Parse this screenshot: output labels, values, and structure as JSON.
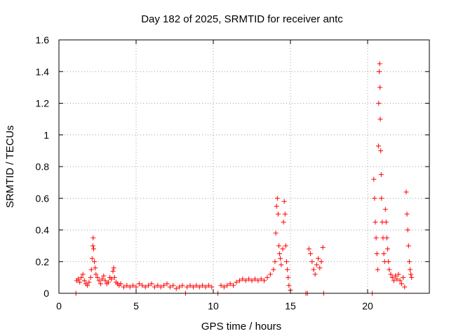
{
  "chart_data": {
    "type": "scatter",
    "title": "Day 182 of 2025, SRMTID for receiver antc",
    "xlabel": "GPS time / hours",
    "ylabel": "SRMTID / TECUs",
    "xlim": [
      0,
      24
    ],
    "ylim": [
      0,
      1.6
    ],
    "xticks": [
      0,
      5,
      10,
      15,
      20
    ],
    "xtick_labels": [
      "0",
      "5",
      "10",
      "15",
      "20"
    ],
    "yticks": [
      0,
      0.2,
      0.4,
      0.6,
      0.8,
      1.0,
      1.2,
      1.4,
      1.6
    ],
    "ytick_labels": [
      "0",
      "0.2",
      "0.4",
      "0.6",
      "0.8",
      "1",
      "1.2",
      "1.4",
      "1.6"
    ],
    "grid": true,
    "marker": "+",
    "color": "#ff0000",
    "series": [
      {
        "name": "SRMTID",
        "points": [
          [
            1.1,
            0.0
          ],
          [
            1.15,
            0.08
          ],
          [
            1.25,
            0.09
          ],
          [
            1.35,
            0.07
          ],
          [
            1.45,
            0.1
          ],
          [
            1.55,
            0.12
          ],
          [
            1.65,
            0.08
          ],
          [
            1.75,
            0.06
          ],
          [
            1.85,
            0.05
          ],
          [
            1.95,
            0.07
          ],
          [
            2.05,
            0.1
          ],
          [
            2.1,
            0.15
          ],
          [
            2.15,
            0.22
          ],
          [
            2.2,
            0.3
          ],
          [
            2.22,
            0.35
          ],
          [
            2.25,
            0.28
          ],
          [
            2.3,
            0.2
          ],
          [
            2.35,
            0.16
          ],
          [
            2.4,
            0.12
          ],
          [
            2.5,
            0.1
          ],
          [
            2.6,
            0.08
          ],
          [
            2.7,
            0.06
          ],
          [
            2.8,
            0.09
          ],
          [
            2.9,
            0.11
          ],
          [
            3.0,
            0.08
          ],
          [
            3.1,
            0.06
          ],
          [
            3.2,
            0.07
          ],
          [
            3.3,
            0.1
          ],
          [
            3.4,
            0.09
          ],
          [
            3.5,
            0.14
          ],
          [
            3.55,
            0.16
          ],
          [
            3.6,
            0.1
          ],
          [
            3.7,
            0.07
          ],
          [
            3.8,
            0.06
          ],
          [
            3.9,
            0.05
          ],
          [
            4.0,
            0.06
          ],
          [
            4.2,
            0.04
          ],
          [
            4.4,
            0.05
          ],
          [
            4.6,
            0.04
          ],
          [
            4.8,
            0.05
          ],
          [
            5.0,
            0.04
          ],
          [
            5.2,
            0.06
          ],
          [
            5.4,
            0.05
          ],
          [
            5.6,
            0.04
          ],
          [
            5.8,
            0.05
          ],
          [
            6.0,
            0.06
          ],
          [
            6.2,
            0.04
          ],
          [
            6.4,
            0.05
          ],
          [
            6.6,
            0.04
          ],
          [
            6.8,
            0.05
          ],
          [
            7.0,
            0.06
          ],
          [
            7.2,
            0.04
          ],
          [
            7.4,
            0.05
          ],
          [
            7.6,
            0.03
          ],
          [
            7.8,
            0.04
          ],
          [
            8.0,
            0.05
          ],
          [
            8.2,
            0.0
          ],
          [
            8.3,
            0.04
          ],
          [
            8.5,
            0.05
          ],
          [
            8.7,
            0.04
          ],
          [
            8.9,
            0.05
          ],
          [
            9.1,
            0.04
          ],
          [
            9.3,
            0.05
          ],
          [
            9.5,
            0.04
          ],
          [
            9.7,
            0.05
          ],
          [
            9.9,
            0.04
          ],
          [
            10.3,
            0.0
          ],
          [
            10.5,
            0.05
          ],
          [
            10.7,
            0.04
          ],
          [
            10.9,
            0.05
          ],
          [
            11.1,
            0.06
          ],
          [
            11.3,
            0.05
          ],
          [
            11.5,
            0.07
          ],
          [
            11.7,
            0.08
          ],
          [
            11.9,
            0.09
          ],
          [
            12.1,
            0.08
          ],
          [
            12.3,
            0.09
          ],
          [
            12.5,
            0.08
          ],
          [
            12.7,
            0.09
          ],
          [
            12.9,
            0.08
          ],
          [
            13.1,
            0.09
          ],
          [
            13.3,
            0.08
          ],
          [
            13.5,
            0.1
          ],
          [
            13.7,
            0.12
          ],
          [
            13.9,
            0.15
          ],
          [
            14.0,
            0.2
          ],
          [
            14.05,
            0.38
          ],
          [
            14.1,
            0.55
          ],
          [
            14.15,
            0.6
          ],
          [
            14.2,
            0.5
          ],
          [
            14.25,
            0.3
          ],
          [
            14.3,
            0.25
          ],
          [
            14.35,
            0.22
          ],
          [
            14.4,
            0.18
          ],
          [
            14.5,
            0.28
          ],
          [
            14.55,
            0.45
          ],
          [
            14.6,
            0.58
          ],
          [
            14.65,
            0.5
          ],
          [
            14.7,
            0.3
          ],
          [
            14.75,
            0.2
          ],
          [
            14.8,
            0.15
          ],
          [
            14.85,
            0.1
          ],
          [
            14.9,
            0.05
          ],
          [
            15.0,
            0.02
          ],
          [
            16.0,
            0.0
          ],
          [
            16.1,
            0.0
          ],
          [
            16.2,
            0.28
          ],
          [
            16.3,
            0.25
          ],
          [
            16.4,
            0.2
          ],
          [
            16.5,
            0.15
          ],
          [
            16.6,
            0.12
          ],
          [
            16.7,
            0.18
          ],
          [
            16.8,
            0.22
          ],
          [
            16.9,
            0.16
          ],
          [
            17.0,
            0.2
          ],
          [
            17.1,
            0.29
          ],
          [
            17.15,
            0.0
          ],
          [
            20.3,
            0.0
          ],
          [
            20.4,
            0.72
          ],
          [
            20.45,
            0.6
          ],
          [
            20.5,
            0.45
          ],
          [
            20.55,
            0.35
          ],
          [
            20.6,
            0.25
          ],
          [
            20.65,
            0.15
          ],
          [
            20.7,
            0.93
          ],
          [
            20.72,
            1.2
          ],
          [
            20.75,
            1.4
          ],
          [
            20.78,
            1.45
          ],
          [
            20.8,
            1.3
          ],
          [
            20.82,
            1.1
          ],
          [
            20.85,
            0.9
          ],
          [
            20.88,
            0.75
          ],
          [
            20.9,
            0.6
          ],
          [
            20.95,
            0.45
          ],
          [
            21.0,
            0.35
          ],
          [
            21.05,
            0.25
          ],
          [
            21.1,
            0.2
          ],
          [
            21.15,
            0.53
          ],
          [
            21.2,
            0.45
          ],
          [
            21.25,
            0.35
          ],
          [
            21.3,
            0.28
          ],
          [
            21.35,
            0.2
          ],
          [
            21.4,
            0.15
          ],
          [
            21.5,
            0.12
          ],
          [
            21.6,
            0.1
          ],
          [
            21.7,
            0.08
          ],
          [
            21.8,
            0.11
          ],
          [
            21.9,
            0.09
          ],
          [
            22.0,
            0.12
          ],
          [
            22.1,
            0.08
          ],
          [
            22.2,
            0.06
          ],
          [
            22.3,
            0.1
          ],
          [
            22.4,
            0.04
          ],
          [
            22.5,
            0.64
          ],
          [
            22.55,
            0.5
          ],
          [
            22.6,
            0.4
          ],
          [
            22.65,
            0.3
          ],
          [
            22.7,
            0.2
          ],
          [
            22.75,
            0.15
          ],
          [
            22.8,
            0.12
          ],
          [
            22.85,
            0.1
          ]
        ]
      }
    ]
  }
}
